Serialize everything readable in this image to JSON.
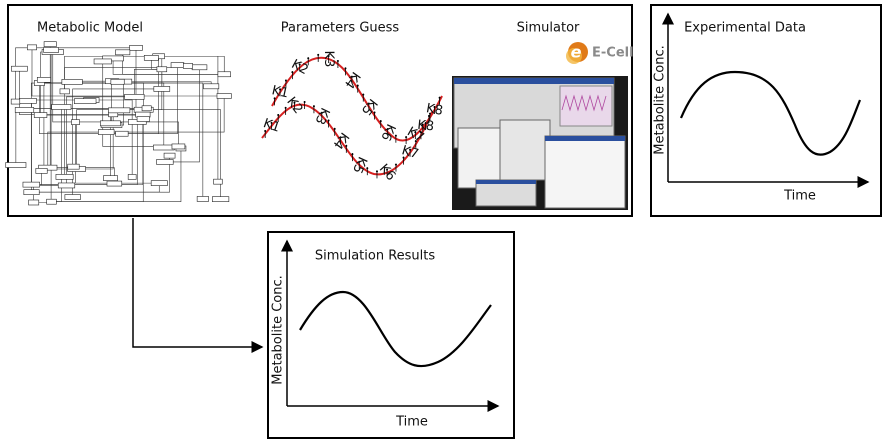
{
  "panels": {
    "metabolic_model": {
      "title": "Metabolic Model"
    },
    "parameters_guess": {
      "title": "Parameters Guess",
      "upper_labels": [
        "K1",
        "K2",
        "K3",
        "K4",
        "K5",
        "K6",
        "K7",
        "K8"
      ],
      "lower_labels": [
        "K1",
        "K2",
        "K3",
        "K4",
        "K5",
        "K6",
        "K7",
        "K8"
      ]
    },
    "simulator": {
      "title": "Simulator",
      "logo": "E-Cell"
    },
    "experimental_data": {
      "title": "Experimental Data",
      "y_label": "Metabolite Conc.",
      "x_label": "Time"
    },
    "simulation_results": {
      "title": "Simulation Results",
      "y_label": "Metabolite Conc.",
      "x_label": "Time"
    }
  }
}
